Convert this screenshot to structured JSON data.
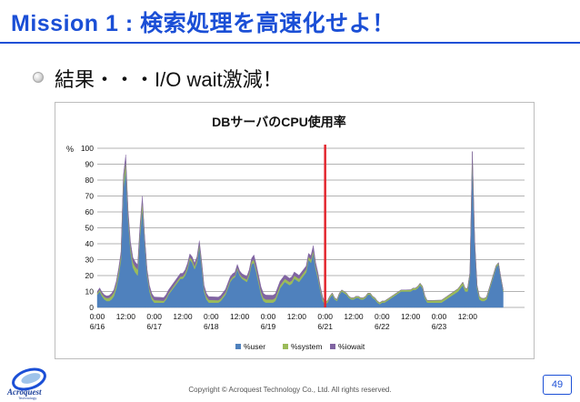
{
  "slide": {
    "title": "Mission 1 : 検索処理を高速化せよ！",
    "bullet": "結果・・・I/O wait激減！",
    "footer": "Copyright © Acroquest Technology Co., Ltd. All rights reserved.",
    "page_number": "49",
    "logo_text": "Acroquest",
    "logo_subtext": "Technology",
    "accent_color": "#1b4fd6"
  },
  "chart_data": {
    "type": "area",
    "title": "DBサーバのCPU使用率",
    "ylabel": "%",
    "ylim": [
      0,
      100
    ],
    "yticks": [
      0,
      10,
      20,
      30,
      40,
      50,
      60,
      70,
      80,
      90,
      100
    ],
    "xlim": [
      0,
      180
    ],
    "x_tick_labels": [
      {
        "x": 0,
        "time": "0:00",
        "date": "6/16"
      },
      {
        "x": 12,
        "time": "12:00",
        "date": ""
      },
      {
        "x": 24,
        "time": "0:00",
        "date": "6/17"
      },
      {
        "x": 36,
        "time": "12:00",
        "date": ""
      },
      {
        "x": 48,
        "time": "0:00",
        "date": "6/18"
      },
      {
        "x": 60,
        "time": "12:00",
        "date": ""
      },
      {
        "x": 72,
        "time": "0:00",
        "date": "6/19"
      },
      {
        "x": 84,
        "time": "12:00",
        "date": ""
      },
      {
        "x": 96,
        "time": "0:00",
        "date": "6/21"
      },
      {
        "x": 108,
        "time": "12:00",
        "date": ""
      },
      {
        "x": 120,
        "time": "0:00",
        "date": "6/22"
      },
      {
        "x": 132,
        "time": "12:00",
        "date": ""
      },
      {
        "x": 144,
        "time": "0:00",
        "date": "6/23"
      },
      {
        "x": 156,
        "time": "12:00",
        "date": ""
      }
    ],
    "marker_x": 96,
    "marker_color": "#e3262e",
    "grid": true,
    "legend_position": "bottom",
    "series": [
      {
        "name": "%user",
        "color": "#4f81bd",
        "points": [
          [
            0,
            8
          ],
          [
            1,
            10
          ],
          [
            2,
            7
          ],
          [
            3,
            5
          ],
          [
            4,
            4
          ],
          [
            5,
            4
          ],
          [
            6,
            5
          ],
          [
            7,
            7
          ],
          [
            8,
            12
          ],
          [
            9,
            20
          ],
          [
            10,
            30
          ],
          [
            11,
            75
          ],
          [
            12,
            86
          ],
          [
            13,
            55
          ],
          [
            14,
            35
          ],
          [
            15,
            25
          ],
          [
            16,
            22
          ],
          [
            17,
            20
          ],
          [
            18,
            45
          ],
          [
            19,
            62
          ],
          [
            20,
            40
          ],
          [
            21,
            20
          ],
          [
            22,
            10
          ],
          [
            23,
            5
          ],
          [
            24,
            3
          ],
          [
            25,
            3
          ],
          [
            26,
            3
          ],
          [
            27,
            3
          ],
          [
            28,
            3
          ],
          [
            29,
            5
          ],
          [
            30,
            8
          ],
          [
            31,
            10
          ],
          [
            32,
            12
          ],
          [
            33,
            14
          ],
          [
            34,
            16
          ],
          [
            35,
            18
          ],
          [
            36,
            18
          ],
          [
            37,
            20
          ],
          [
            38,
            24
          ],
          [
            39,
            30
          ],
          [
            40,
            28
          ],
          [
            41,
            24
          ],
          [
            42,
            28
          ],
          [
            43,
            38
          ],
          [
            44,
            25
          ],
          [
            45,
            10
          ],
          [
            46,
            5
          ],
          [
            47,
            3
          ],
          [
            48,
            3
          ],
          [
            49,
            3
          ],
          [
            50,
            3
          ],
          [
            51,
            3
          ],
          [
            52,
            4
          ],
          [
            53,
            6
          ],
          [
            54,
            8
          ],
          [
            55,
            12
          ],
          [
            56,
            16
          ],
          [
            57,
            18
          ],
          [
            58,
            19
          ],
          [
            59,
            24
          ],
          [
            60,
            20
          ],
          [
            61,
            18
          ],
          [
            62,
            17
          ],
          [
            63,
            16
          ],
          [
            64,
            20
          ],
          [
            65,
            27
          ],
          [
            66,
            28
          ],
          [
            67,
            22
          ],
          [
            68,
            15
          ],
          [
            69,
            8
          ],
          [
            70,
            4
          ],
          [
            71,
            3
          ],
          [
            72,
            3
          ],
          [
            73,
            3
          ],
          [
            74,
            3
          ],
          [
            75,
            4
          ],
          [
            76,
            8
          ],
          [
            77,
            12
          ],
          [
            78,
            14
          ],
          [
            79,
            16
          ],
          [
            80,
            15
          ],
          [
            81,
            14
          ],
          [
            82,
            15
          ],
          [
            83,
            18
          ],
          [
            84,
            17
          ],
          [
            85,
            16
          ],
          [
            86,
            18
          ],
          [
            87,
            20
          ],
          [
            88,
            22
          ],
          [
            89,
            30
          ],
          [
            90,
            28
          ],
          [
            91,
            34
          ],
          [
            92,
            24
          ],
          [
            93,
            18
          ],
          [
            94,
            10
          ],
          [
            95,
            4
          ],
          [
            96,
            2
          ],
          [
            97,
            3
          ],
          [
            98,
            6
          ],
          [
            99,
            8
          ],
          [
            100,
            5
          ],
          [
            101,
            4
          ],
          [
            102,
            8
          ],
          [
            103,
            10
          ],
          [
            104,
            9
          ],
          [
            105,
            8
          ],
          [
            106,
            6
          ],
          [
            107,
            5
          ],
          [
            108,
            5
          ],
          [
            109,
            6
          ],
          [
            110,
            6
          ],
          [
            111,
            5
          ],
          [
            112,
            5
          ],
          [
            113,
            6
          ],
          [
            114,
            8
          ],
          [
            115,
            8
          ],
          [
            116,
            6
          ],
          [
            117,
            5
          ],
          [
            118,
            3
          ],
          [
            119,
            2
          ],
          [
            120,
            3
          ],
          [
            121,
            3
          ],
          [
            122,
            4
          ],
          [
            123,
            5
          ],
          [
            124,
            6
          ],
          [
            125,
            7
          ],
          [
            126,
            8
          ],
          [
            127,
            9
          ],
          [
            128,
            10
          ],
          [
            129,
            10
          ],
          [
            130,
            10
          ],
          [
            131,
            10
          ],
          [
            132,
            10
          ],
          [
            133,
            11
          ],
          [
            134,
            11
          ],
          [
            135,
            12
          ],
          [
            136,
            14
          ],
          [
            137,
            12
          ],
          [
            138,
            6
          ],
          [
            139,
            3
          ],
          [
            140,
            3
          ],
          [
            141,
            3
          ],
          [
            142,
            3
          ],
          [
            143,
            3
          ],
          [
            144,
            3
          ],
          [
            145,
            3
          ],
          [
            146,
            4
          ],
          [
            147,
            5
          ],
          [
            148,
            6
          ],
          [
            149,
            7
          ],
          [
            150,
            8
          ],
          [
            151,
            9
          ],
          [
            152,
            10
          ],
          [
            153,
            12
          ],
          [
            154,
            14
          ],
          [
            155,
            10
          ],
          [
            156,
            10
          ],
          [
            157,
            20
          ],
          [
            158,
            92
          ],
          [
            159,
            40
          ],
          [
            160,
            12
          ],
          [
            161,
            5
          ],
          [
            162,
            4
          ],
          [
            163,
            4
          ],
          [
            164,
            5
          ],
          [
            165,
            10
          ],
          [
            166,
            15
          ],
          [
            167,
            20
          ],
          [
            168,
            25
          ],
          [
            169,
            27
          ],
          [
            170,
            18
          ],
          [
            171,
            10
          ]
        ]
      },
      {
        "name": "%system",
        "color": "#9bbb59",
        "points": [
          [
            0,
            1
          ],
          [
            10,
            3
          ],
          [
            11,
            5
          ],
          [
            12,
            6
          ],
          [
            13,
            3
          ],
          [
            18,
            4
          ],
          [
            19,
            5
          ],
          [
            20,
            2
          ],
          [
            30,
            1
          ],
          [
            43,
            2
          ],
          [
            60,
            1
          ],
          [
            66,
            2
          ],
          [
            90,
            2
          ],
          [
            100,
            1
          ],
          [
            130,
            1
          ],
          [
            157,
            2
          ],
          [
            158,
            6
          ],
          [
            159,
            2
          ],
          [
            171,
            1
          ]
        ]
      },
      {
        "name": "%iowait",
        "color": "#8064a2",
        "points": [
          [
            0,
            1
          ],
          [
            10,
            2
          ],
          [
            11,
            3
          ],
          [
            12,
            4
          ],
          [
            13,
            3
          ],
          [
            19,
            3
          ],
          [
            20,
            2
          ],
          [
            43,
            2
          ],
          [
            65,
            2
          ],
          [
            66,
            3
          ],
          [
            89,
            2
          ],
          [
            91,
            3
          ],
          [
            95,
            1
          ],
          [
            96,
            0
          ],
          [
            171,
            0
          ]
        ]
      }
    ]
  }
}
